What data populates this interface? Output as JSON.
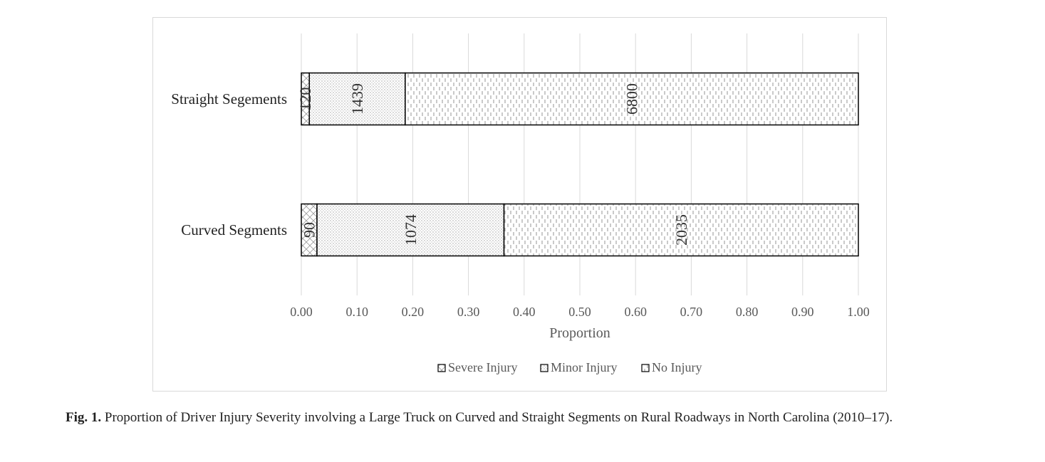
{
  "chart_data": {
    "type": "bar",
    "orientation": "horizontal",
    "stacked": "percent",
    "categories": [
      "Straight Segements",
      "Curved Segments"
    ],
    "series": [
      {
        "name": "Severe Injury",
        "values": [
          120,
          90
        ],
        "pattern": "crosshatch"
      },
      {
        "name": "Minor Injury",
        "values": [
          1439,
          1074
        ],
        "pattern": "dots"
      },
      {
        "name": "No Injury",
        "values": [
          6800,
          2035
        ],
        "pattern": "dashes"
      }
    ],
    "xlabel": "Proportion",
    "ylabel": "",
    "xlim": [
      0,
      1
    ],
    "xticks": [
      "0.00",
      "0.10",
      "0.20",
      "0.30",
      "0.40",
      "0.50",
      "0.60",
      "0.70",
      "0.80",
      "0.90",
      "1.00"
    ],
    "grid": "vertical",
    "legend": "bottom"
  },
  "caption": {
    "label": "Fig. 1.",
    "text": " Proportion of Driver Injury Severity involving a Large Truck on Curved and Straight Segments on Rural Roadways in North Carolina (2010–17)."
  }
}
